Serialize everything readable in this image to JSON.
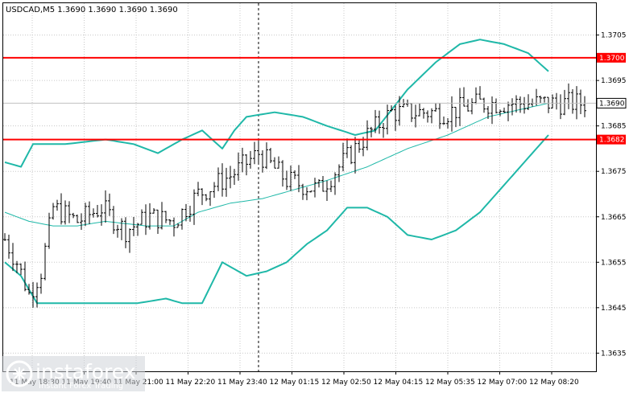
{
  "chart_data": {
    "type": "candlestick",
    "title": "USDCAD,M5  1.3690 1.3690 1.3690 1.3690",
    "y_range": [
      1.3631,
      1.3712
    ],
    "y_ticks": [
      "1.3705",
      "1.3695",
      "1.3685",
      "1.3675",
      "1.3665",
      "1.3655",
      "1.3645",
      "1.3635"
    ],
    "x_ticks": [
      "11 May 18:30",
      "11 May 19:40",
      "11 May 21:00",
      "11 May 22:20",
      "11 May 23:40",
      "12 May 01:15",
      "12 May 02:50",
      "12 May 04:15",
      "12 May 05:35",
      "12 May 07:00",
      "12 May 08:20"
    ],
    "bars_count": 145,
    "horizontal_levels": [
      {
        "value": 1.37,
        "label": "1.3700",
        "color": "#ff0000"
      },
      {
        "value": 1.3682,
        "label": "1.3682",
        "color": "#ff0000"
      }
    ],
    "current_price": {
      "value": 1.369,
      "label": "1.3690"
    },
    "session_separator_bar": 63,
    "close_path": [
      [
        0,
        1.366
      ],
      [
        3,
        1.3655
      ],
      [
        6,
        1.3648
      ],
      [
        9,
        1.3653
      ],
      [
        12,
        1.3667
      ],
      [
        18,
        1.3664
      ],
      [
        24,
        1.3667
      ],
      [
        30,
        1.3662
      ],
      [
        36,
        1.3665
      ],
      [
        42,
        1.3664
      ],
      [
        48,
        1.367
      ],
      [
        56,
        1.3674
      ],
      [
        63,
        1.3679
      ],
      [
        70,
        1.3673
      ],
      [
        78,
        1.3671
      ],
      [
        84,
        1.3677
      ],
      [
        90,
        1.3683
      ],
      [
        96,
        1.3688
      ],
      [
        103,
        1.3688
      ],
      [
        110,
        1.3688
      ],
      [
        118,
        1.369
      ],
      [
        125,
        1.369
      ],
      [
        132,
        1.369
      ],
      [
        144,
        1.369
      ]
    ],
    "bollinger_upper": [
      [
        0,
        1.3677
      ],
      [
        4,
        1.3676
      ],
      [
        7,
        1.3681
      ],
      [
        15,
        1.3681
      ],
      [
        25,
        1.3682
      ],
      [
        32,
        1.3681
      ],
      [
        38,
        1.3679
      ],
      [
        44,
        1.3682
      ],
      [
        49,
        1.3684
      ],
      [
        54,
        1.368
      ],
      [
        57,
        1.3684
      ],
      [
        60,
        1.3687
      ],
      [
        67,
        1.3688
      ],
      [
        74,
        1.3687
      ],
      [
        80,
        1.3685
      ],
      [
        87,
        1.3683
      ],
      [
        92,
        1.3684
      ],
      [
        100,
        1.3693
      ],
      [
        107,
        1.3699
      ],
      [
        113,
        1.3703
      ],
      [
        118,
        1.3704
      ],
      [
        124,
        1.3703
      ],
      [
        130,
        1.3701
      ],
      [
        135,
        1.3697
      ]
    ],
    "bollinger_middle": [
      [
        0,
        1.3666
      ],
      [
        6,
        1.3664
      ],
      [
        12,
        1.3663
      ],
      [
        18,
        1.3663
      ],
      [
        25,
        1.3664
      ],
      [
        35,
        1.3663
      ],
      [
        42,
        1.3663
      ],
      [
        48,
        1.3666
      ],
      [
        56,
        1.3668
      ],
      [
        64,
        1.3669
      ],
      [
        72,
        1.3671
      ],
      [
        80,
        1.3673
      ],
      [
        90,
        1.3676
      ],
      [
        100,
        1.368
      ],
      [
        110,
        1.3683
      ],
      [
        120,
        1.3687
      ],
      [
        130,
        1.3689
      ],
      [
        135,
        1.369
      ]
    ],
    "bollinger_lower": [
      [
        0,
        1.3655
      ],
      [
        4,
        1.3652
      ],
      [
        8,
        1.3646
      ],
      [
        15,
        1.3646
      ],
      [
        25,
        1.3646
      ],
      [
        33,
        1.3646
      ],
      [
        40,
        1.3647
      ],
      [
        44,
        1.3646
      ],
      [
        49,
        1.3646
      ],
      [
        54,
        1.3655
      ],
      [
        60,
        1.3652
      ],
      [
        65,
        1.3653
      ],
      [
        70,
        1.3655
      ],
      [
        75,
        1.3659
      ],
      [
        80,
        1.3662
      ],
      [
        85,
        1.3667
      ],
      [
        90,
        1.3667
      ],
      [
        95,
        1.3665
      ],
      [
        100,
        1.3661
      ],
      [
        106,
        1.366
      ],
      [
        112,
        1.3662
      ],
      [
        118,
        1.3666
      ],
      [
        124,
        1.3672
      ],
      [
        130,
        1.3678
      ],
      [
        135,
        1.3683
      ]
    ]
  },
  "logo": {
    "name": "instaforex",
    "tagline": "Instant Forex Trading"
  }
}
